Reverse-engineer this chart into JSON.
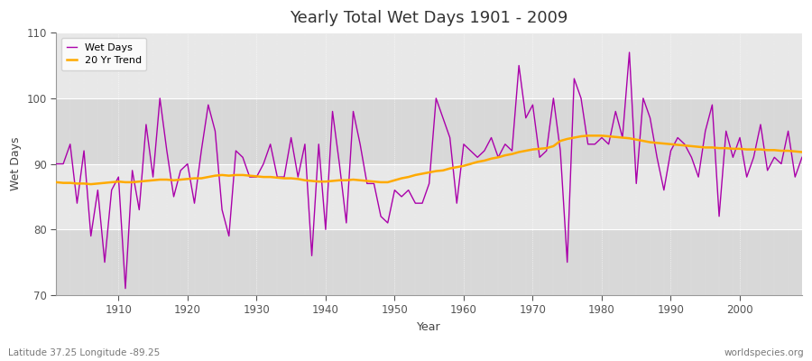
{
  "title": "Yearly Total Wet Days 1901 - 2009",
  "xlabel": "Year",
  "ylabel": "Wet Days",
  "subtitle_left": "Latitude 37.25 Longitude -89.25",
  "subtitle_right": "worldspecies.org",
  "xlim": [
    1901,
    2009
  ],
  "ylim": [
    70,
    110
  ],
  "yticks": [
    70,
    80,
    90,
    100,
    110
  ],
  "xticks": [
    1910,
    1920,
    1930,
    1940,
    1950,
    1960,
    1970,
    1980,
    1990,
    2000
  ],
  "line_color": "#aa00aa",
  "trend_color": "#ffaa00",
  "bg_light": "#e8e8e8",
  "bg_dark": "#d8d8d8",
  "fig_background": "#ffffff",
  "legend_entries": [
    "Wet Days",
    "20 Yr Trend"
  ],
  "wet_days": {
    "1901": 90,
    "1902": 90,
    "1903": 93,
    "1904": 84,
    "1905": 92,
    "1906": 79,
    "1907": 86,
    "1908": 75,
    "1909": 86,
    "1910": 88,
    "1911": 71,
    "1912": 89,
    "1913": 83,
    "1914": 96,
    "1915": 88,
    "1916": 100,
    "1917": 92,
    "1918": 85,
    "1919": 89,
    "1920": 90,
    "1921": 84,
    "1922": 92,
    "1923": 99,
    "1924": 95,
    "1925": 83,
    "1926": 79,
    "1927": 92,
    "1928": 91,
    "1929": 88,
    "1930": 88,
    "1931": 90,
    "1932": 93,
    "1933": 88,
    "1934": 88,
    "1935": 94,
    "1936": 88,
    "1937": 93,
    "1938": 76,
    "1939": 93,
    "1940": 80,
    "1941": 98,
    "1942": 90,
    "1943": 81,
    "1944": 98,
    "1945": 93,
    "1946": 87,
    "1947": 87,
    "1948": 82,
    "1949": 81,
    "1950": 86,
    "1951": 85,
    "1952": 86,
    "1953": 84,
    "1954": 84,
    "1955": 87,
    "1956": 100,
    "1957": 97,
    "1958": 94,
    "1959": 84,
    "1960": 93,
    "1961": 92,
    "1962": 91,
    "1963": 92,
    "1964": 94,
    "1965": 91,
    "1966": 93,
    "1967": 92,
    "1968": 105,
    "1969": 97,
    "1970": 99,
    "1971": 91,
    "1972": 92,
    "1973": 100,
    "1974": 92,
    "1975": 75,
    "1976": 103,
    "1977": 100,
    "1978": 93,
    "1979": 93,
    "1980": 94,
    "1981": 93,
    "1982": 98,
    "1983": 94,
    "1984": 107,
    "1985": 87,
    "1986": 100,
    "1987": 97,
    "1988": 91,
    "1989": 86,
    "1990": 92,
    "1991": 94,
    "1992": 93,
    "1993": 91,
    "1994": 88,
    "1995": 95,
    "1996": 99,
    "1997": 82,
    "1998": 95,
    "1999": 91,
    "2000": 94,
    "2001": 88,
    "2002": 91,
    "2003": 96,
    "2004": 89,
    "2005": 91,
    "2006": 90,
    "2007": 95,
    "2008": 88,
    "2009": 91
  },
  "trend_days_smooth": {
    "1901": 87.2,
    "1902": 87.1,
    "1903": 87.1,
    "1904": 87.0,
    "1905": 87.0,
    "1906": 86.9,
    "1907": 87.0,
    "1908": 87.1,
    "1909": 87.2,
    "1910": 87.3,
    "1911": 87.2,
    "1912": 87.2,
    "1913": 87.3,
    "1914": 87.4,
    "1915": 87.5,
    "1916": 87.6,
    "1917": 87.6,
    "1918": 87.5,
    "1919": 87.6,
    "1920": 87.7,
    "1921": 87.8,
    "1922": 87.8,
    "1923": 88.0,
    "1924": 88.2,
    "1925": 88.3,
    "1926": 88.2,
    "1927": 88.3,
    "1928": 88.3,
    "1929": 88.2,
    "1930": 88.1,
    "1931": 88.0,
    "1932": 88.0,
    "1933": 87.9,
    "1934": 87.8,
    "1935": 87.8,
    "1936": 87.7,
    "1937": 87.5,
    "1938": 87.4,
    "1939": 87.3,
    "1940": 87.3,
    "1941": 87.4,
    "1942": 87.5,
    "1943": 87.5,
    "1944": 87.6,
    "1945": 87.5,
    "1946": 87.4,
    "1947": 87.3,
    "1948": 87.2,
    "1949": 87.2,
    "1950": 87.5,
    "1951": 87.8,
    "1952": 88.0,
    "1953": 88.3,
    "1954": 88.5,
    "1955": 88.7,
    "1956": 88.9,
    "1957": 89.0,
    "1958": 89.3,
    "1959": 89.5,
    "1960": 89.7,
    "1961": 90.0,
    "1962": 90.3,
    "1963": 90.5,
    "1964": 90.8,
    "1965": 91.0,
    "1966": 91.3,
    "1967": 91.5,
    "1968": 91.8,
    "1969": 92.0,
    "1970": 92.2,
    "1971": 92.3,
    "1972": 92.4,
    "1973": 92.7,
    "1974": 93.5,
    "1975": 93.8,
    "1976": 94.0,
    "1977": 94.2,
    "1978": 94.3,
    "1979": 94.3,
    "1980": 94.3,
    "1981": 94.2,
    "1982": 94.1,
    "1983": 94.0,
    "1984": 93.9,
    "1985": 93.7,
    "1986": 93.5,
    "1987": 93.3,
    "1988": 93.2,
    "1989": 93.1,
    "1990": 93.0,
    "1991": 92.9,
    "1992": 92.8,
    "1993": 92.7,
    "1994": 92.6,
    "1995": 92.5,
    "1996": 92.5,
    "1997": 92.4,
    "1998": 92.4,
    "1999": 92.3,
    "2000": 92.3,
    "2001": 92.2,
    "2002": 92.2,
    "2003": 92.2,
    "2004": 92.1,
    "2005": 92.1,
    "2006": 92.0,
    "2007": 92.0,
    "2008": 91.9,
    "2009": 91.8
  }
}
